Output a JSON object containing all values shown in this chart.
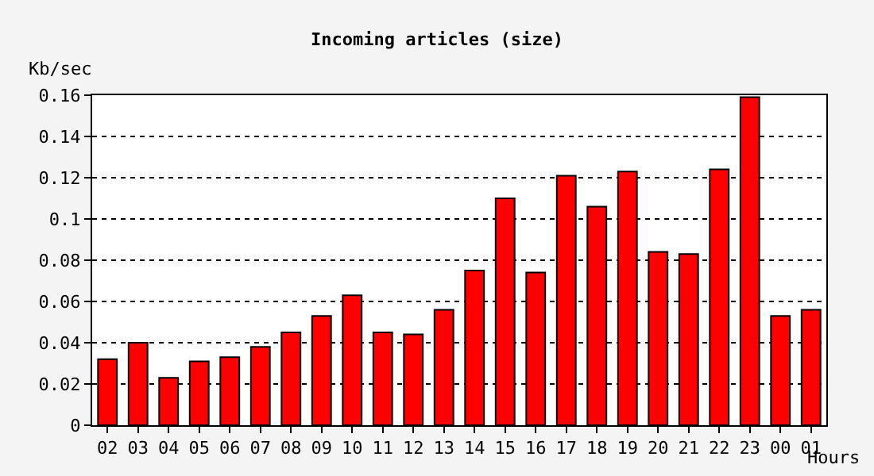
{
  "chart_data": {
    "type": "bar",
    "title": "Incoming articles (size)",
    "xlabel": "Hours",
    "ylabel": "Kb/sec",
    "categories": [
      "02",
      "03",
      "04",
      "05",
      "06",
      "07",
      "08",
      "09",
      "10",
      "11",
      "12",
      "13",
      "14",
      "15",
      "16",
      "17",
      "18",
      "19",
      "20",
      "21",
      "22",
      "23",
      "00",
      "01"
    ],
    "values": [
      0.032,
      0.04,
      0.023,
      0.031,
      0.033,
      0.038,
      0.045,
      0.053,
      0.063,
      0.045,
      0.044,
      0.056,
      0.075,
      0.11,
      0.074,
      0.121,
      0.106,
      0.123,
      0.084,
      0.083,
      0.124,
      0.159,
      0.053,
      0.056
    ],
    "color": "#ff0000",
    "ylim": [
      0,
      0.16
    ],
    "yticks": [
      0,
      0.02,
      0.04,
      0.06,
      0.08,
      {
        "value": 0.1,
        "label": "0.1"
      },
      0.12,
      0.14,
      0.16
    ],
    "grid": "y"
  }
}
